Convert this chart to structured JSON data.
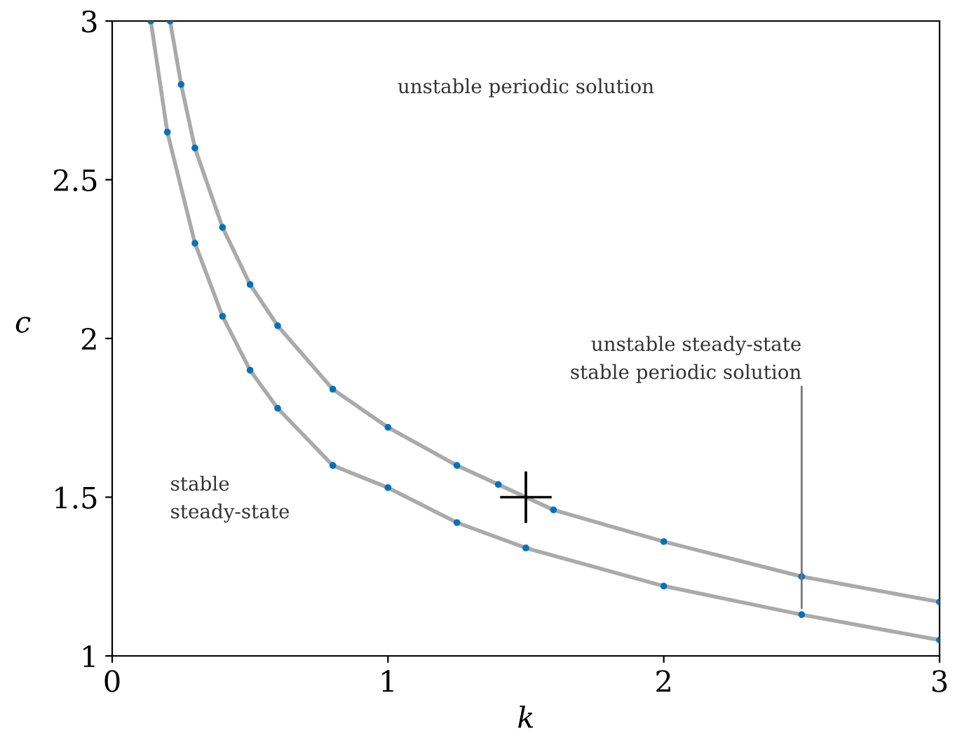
{
  "chart_data": {
    "type": "line",
    "xlabel": "k",
    "ylabel": "c",
    "series": [
      {
        "color": "#0072bd",
        "x": [
          0.14,
          0.2,
          0.3,
          0.4,
          0.5,
          0.6,
          0.8,
          1.0,
          1.25,
          1.5,
          2.0,
          2.5,
          3.0
        ],
        "values": [
          3,
          2.65,
          2.3,
          2.07,
          1.9,
          1.78,
          1.6,
          1.53,
          1.42,
          1.34,
          1.22,
          1.13,
          1.05
        ]
      },
      {
        "color": "#0072bd",
        "x": [
          0.21,
          0.25,
          0.3,
          0.4,
          0.5,
          0.6,
          0.8,
          1.0,
          1.25,
          1.4,
          1.6,
          2.0,
          2.5,
          3.0
        ],
        "values": [
          3,
          2.8,
          2.6,
          2.35,
          2.17,
          2.04,
          1.84,
          1.72,
          1.6,
          1.54,
          1.46,
          1.36,
          1.25,
          1.17
        ]
      },
      {
        "type": "scatter",
        "marker": "cross",
        "color": "#000000",
        "x": [
          1.5
        ],
        "values": [
          1.5
        ]
      }
    ],
    "annotations": [
      "unstable periodic solution",
      {
        "text": "unstable steady-state\nstable periodic solution",
        "x": 2.5,
        "y": 1.15
      },
      "stable\nsteady-state"
    ],
    "xlim": [
      0,
      3
    ],
    "ylim": [
      1,
      3
    ],
    "xticks": [
      0,
      1,
      2,
      3
    ],
    "yticks": [
      1,
      1.5,
      2,
      2.5,
      3
    ],
    "marker": "circle",
    "grid": false,
    "legend": false
  }
}
